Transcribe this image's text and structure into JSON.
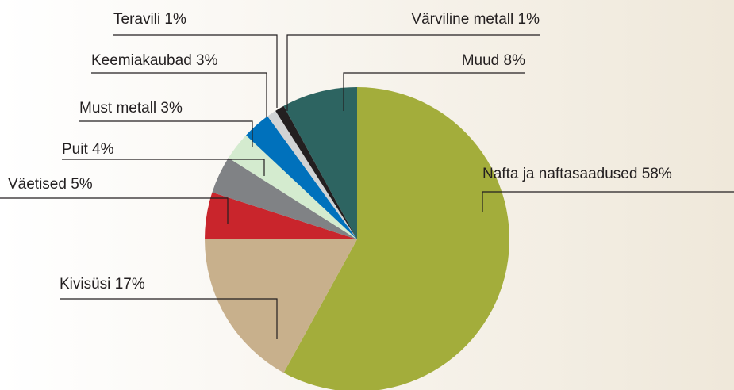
{
  "chart_data": {
    "type": "pie",
    "categories": [
      "Nafta ja naftasaadused",
      "Kivisüsi",
      "Väetised",
      "Puit",
      "Must metall",
      "Keemiakaubad",
      "Teravili",
      "Värviline metall",
      "Muud"
    ],
    "values": [
      58,
      17,
      5,
      4,
      3,
      3,
      1,
      1,
      8
    ],
    "value_labels": [
      "58%",
      "17%",
      "5%",
      "4%",
      "3%",
      "3%",
      "1%",
      "1%",
      "8%"
    ],
    "colors": [
      "#a3ad3b",
      "#c8b08c",
      "#c9252c",
      "#808285",
      "#d4ebcf",
      "#0071bc",
      "#d1d3d4",
      "#231f20",
      "#2d6461"
    ]
  }
}
